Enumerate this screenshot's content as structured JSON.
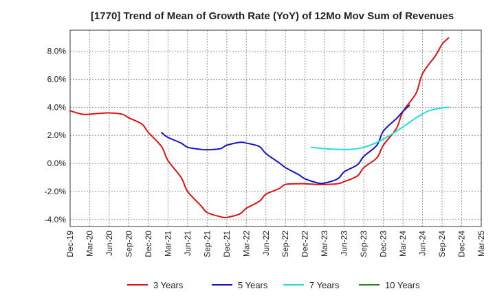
{
  "chart_data": {
    "type": "line",
    "title": "[1770]  Trend of Mean of Growth Rate (YoY) of 12Mo Mov Sum of Revenues",
    "xlabel": "",
    "ylabel": "",
    "ylim": [
      -4.5,
      9.5
    ],
    "yticks": [
      -4.0,
      -2.0,
      0.0,
      2.0,
      4.0,
      6.0,
      8.0
    ],
    "ytick_labels": [
      "-4.0%",
      "-2.0%",
      "0.0%",
      "2.0%",
      "4.0%",
      "6.0%",
      "8.0%"
    ],
    "xticks": [
      "Dec-19",
      "Mar-20",
      "Jun-20",
      "Sep-20",
      "Dec-20",
      "Mar-21",
      "Jun-21",
      "Sep-21",
      "Dec-21",
      "Mar-22",
      "Jun-22",
      "Sep-22",
      "Dec-22",
      "Mar-23",
      "Jun-23",
      "Sep-23",
      "Dec-23",
      "Mar-24",
      "Jun-24",
      "Sep-24",
      "Dec-24",
      "Mar-25"
    ],
    "series": [
      {
        "name": "3 Years",
        "color": "#dd1111",
        "points": [
          [
            0,
            3.75
          ],
          [
            0.67,
            3.5
          ],
          [
            1.33,
            3.55
          ],
          [
            2,
            3.6
          ],
          [
            2.67,
            3.5
          ],
          [
            3,
            3.25
          ],
          [
            3.67,
            2.8
          ],
          [
            4,
            2.2
          ],
          [
            4.67,
            1.2
          ],
          [
            5,
            0.2
          ],
          [
            5.67,
            -1.0
          ],
          [
            6,
            -2.0
          ],
          [
            6.67,
            -3.0
          ],
          [
            7,
            -3.5
          ],
          [
            7.67,
            -3.8
          ],
          [
            8,
            -3.85
          ],
          [
            8.67,
            -3.6
          ],
          [
            9,
            -3.2
          ],
          [
            9.67,
            -2.7
          ],
          [
            10,
            -2.2
          ],
          [
            10.67,
            -1.8
          ],
          [
            11,
            -1.5
          ],
          [
            11.67,
            -1.45
          ],
          [
            12,
            -1.45
          ],
          [
            12.67,
            -1.5
          ],
          [
            13,
            -1.5
          ],
          [
            13.67,
            -1.45
          ],
          [
            14,
            -1.3
          ],
          [
            14.67,
            -0.9
          ],
          [
            15,
            -0.3
          ],
          [
            15.67,
            0.4
          ],
          [
            16,
            1.3
          ],
          [
            16.67,
            2.5
          ],
          [
            17,
            3.7
          ],
          [
            17.67,
            5.0
          ],
          [
            18,
            6.4
          ],
          [
            18.67,
            7.7
          ],
          [
            19,
            8.5
          ],
          [
            19.33,
            8.95
          ]
        ]
      },
      {
        "name": "5 Years",
        "color": "#1111cc",
        "points": [
          [
            4.67,
            2.2
          ],
          [
            5,
            1.85
          ],
          [
            5.67,
            1.45
          ],
          [
            6,
            1.15
          ],
          [
            6.67,
            1.0
          ],
          [
            7,
            0.97
          ],
          [
            7.67,
            1.05
          ],
          [
            8,
            1.3
          ],
          [
            8.67,
            1.5
          ],
          [
            9,
            1.45
          ],
          [
            9.67,
            1.2
          ],
          [
            10,
            0.7
          ],
          [
            10.67,
            0.05
          ],
          [
            11,
            -0.3
          ],
          [
            11.67,
            -0.8
          ],
          [
            12,
            -1.1
          ],
          [
            12.67,
            -1.4
          ],
          [
            13,
            -1.4
          ],
          [
            13.67,
            -1.1
          ],
          [
            14,
            -0.6
          ],
          [
            14.67,
            -0.1
          ],
          [
            15,
            0.5
          ],
          [
            15.67,
            1.3
          ],
          [
            16,
            2.3
          ],
          [
            16.67,
            3.2
          ],
          [
            17,
            3.7
          ],
          [
            17.33,
            4.15
          ]
        ]
      },
      {
        "name": "7 Years",
        "color": "#22dddd",
        "points": [
          [
            12.33,
            1.15
          ],
          [
            13,
            1.05
          ],
          [
            13.67,
            1.0
          ],
          [
            14.33,
            1.0
          ],
          [
            15,
            1.15
          ],
          [
            15.67,
            1.5
          ],
          [
            16.33,
            2.0
          ],
          [
            17,
            2.6
          ],
          [
            17.67,
            3.25
          ],
          [
            18.33,
            3.75
          ],
          [
            19,
            3.95
          ],
          [
            19.33,
            4.0
          ]
        ]
      },
      {
        "name": "10 Years",
        "color": "#228822",
        "points": []
      }
    ]
  }
}
